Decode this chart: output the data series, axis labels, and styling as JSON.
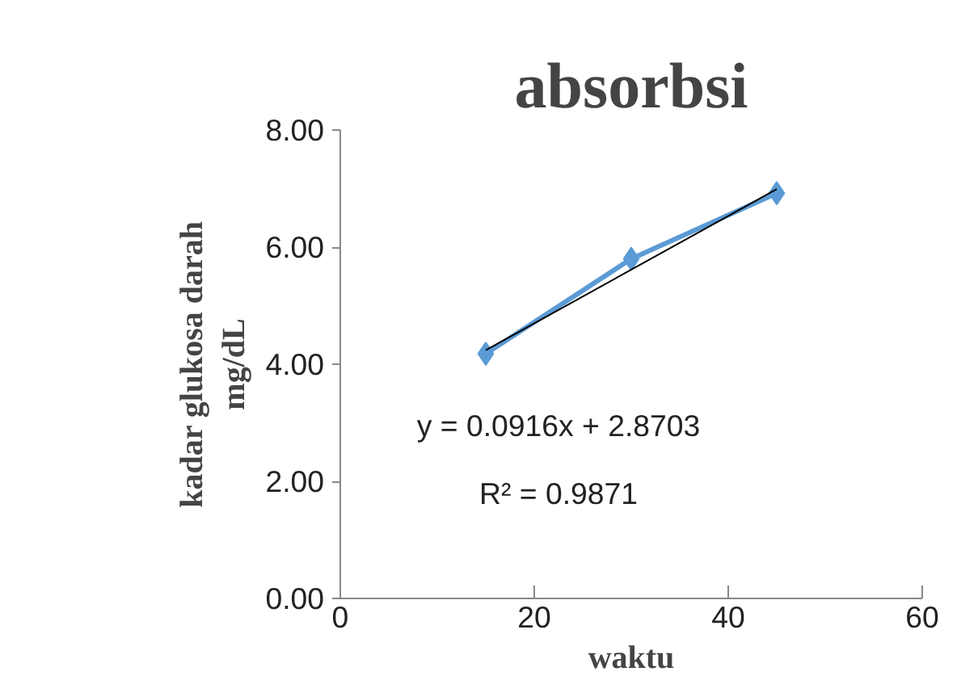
{
  "chart_data": {
    "type": "line",
    "title": "absorbsi",
    "xlabel": "waktu",
    "ylabel": "kadar glukosa darah\nmg/dL",
    "x": [
      15,
      30,
      45
    ],
    "series": [
      {
        "color": "#5b9bd5",
        "values": [
          4.18,
          5.8,
          6.92
        ],
        "marker": "diamond"
      },
      {
        "type": "line",
        "color": "#000000",
        "x": [
          15,
          45
        ],
        "values": [
          4.24,
          6.99
        ],
        "marker": "none"
      }
    ],
    "xlim": [
      0,
      60
    ],
    "xticks": [
      0,
      20,
      40,
      60
    ],
    "ylim": [
      0,
      8
    ],
    "yticks": [
      {
        "value": 0,
        "label": "0.00"
      },
      {
        "value": 2,
        "label": "2.00"
      },
      {
        "value": 4,
        "label": "4.00"
      },
      {
        "value": 6,
        "label": "6.00"
      },
      {
        "value": 8,
        "label": "8.00"
      }
    ],
    "grid": false,
    "annotations": [
      "y = 0.0916x + 2.8703",
      "R² = 0.9871"
    ]
  }
}
